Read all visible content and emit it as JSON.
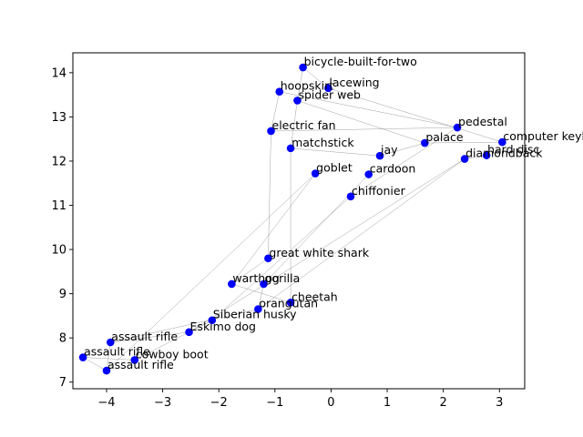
{
  "chart_data": {
    "type": "scatter",
    "title": "",
    "xlabel": "",
    "ylabel": "",
    "xlim": [
      -4.6,
      3.45
    ],
    "ylim": [
      6.85,
      14.45
    ],
    "xticks": [
      -4,
      -3,
      -2,
      -1,
      0,
      1,
      2,
      3
    ],
    "yticks": [
      7,
      8,
      9,
      10,
      11,
      12,
      13,
      14
    ],
    "grid": false,
    "colors": {
      "point": "#0000ff",
      "edge": "#808080",
      "axes": "#000000"
    },
    "points": [
      {
        "label": "bicycle-built-for-two",
        "x": -0.5,
        "y": 14.12
      },
      {
        "label": "lacewing",
        "x": -0.05,
        "y": 13.65
      },
      {
        "label": "hoopskirt",
        "x": -0.92,
        "y": 13.57
      },
      {
        "label": "spider web",
        "x": -0.6,
        "y": 13.37
      },
      {
        "label": "pedestal",
        "x": 2.25,
        "y": 12.76
      },
      {
        "label": "electric fan",
        "x": -1.07,
        "y": 12.68
      },
      {
        "label": "computer keyboard",
        "x": 3.05,
        "y": 12.43
      },
      {
        "label": "palace",
        "x": 1.67,
        "y": 12.41
      },
      {
        "label": "matchstick",
        "x": -0.72,
        "y": 12.29
      },
      {
        "label": "hard disc",
        "x": 2.77,
        "y": 12.13
      },
      {
        "label": "jay",
        "x": 0.87,
        "y": 12.12
      },
      {
        "label": "diamondback",
        "x": 2.38,
        "y": 12.05
      },
      {
        "label": "goblet",
        "x": -0.28,
        "y": 11.72
      },
      {
        "label": "cardoon",
        "x": 0.67,
        "y": 11.7
      },
      {
        "label": "chiffonier",
        "x": 0.35,
        "y": 11.2
      },
      {
        "label": "great white shark",
        "x": -1.12,
        "y": 9.8
      },
      {
        "label": "warthog",
        "x": -1.77,
        "y": 9.22
      },
      {
        "label": "gorilla",
        "x": -1.2,
        "y": 9.22
      },
      {
        "label": "cheetah",
        "x": -0.72,
        "y": 8.8
      },
      {
        "label": "orangutan",
        "x": -1.3,
        "y": 8.65
      },
      {
        "label": "Siberian husky",
        "x": -2.12,
        "y": 8.4
      },
      {
        "label": "Eskimo dog",
        "x": -2.53,
        "y": 8.13
      },
      {
        "label": "assault rifle",
        "x": -3.93,
        "y": 7.9
      },
      {
        "label": "assault rifle",
        "x": -4.42,
        "y": 7.56
      },
      {
        "label": "cowboy boot",
        "x": -3.5,
        "y": 7.5
      },
      {
        "label": "assault rifle",
        "x": -4.0,
        "y": 7.26
      }
    ],
    "edges": [
      [
        0,
        3
      ],
      [
        0,
        1
      ],
      [
        1,
        6
      ],
      [
        2,
        4
      ],
      [
        2,
        5
      ],
      [
        3,
        8
      ],
      [
        3,
        7
      ],
      [
        4,
        14
      ],
      [
        4,
        5
      ],
      [
        5,
        15
      ],
      [
        6,
        7
      ],
      [
        8,
        10
      ],
      [
        9,
        11
      ],
      [
        10,
        7
      ],
      [
        11,
        19
      ],
      [
        11,
        21
      ],
      [
        12,
        16
      ],
      [
        13,
        17
      ],
      [
        14,
        20
      ],
      [
        15,
        16
      ],
      [
        16,
        18
      ],
      [
        17,
        19
      ],
      [
        18,
        8
      ],
      [
        19,
        22
      ],
      [
        20,
        21
      ],
      [
        21,
        22
      ],
      [
        22,
        25
      ],
      [
        23,
        24
      ],
      [
        23,
        25
      ],
      [
        24,
        20
      ],
      [
        25,
        12
      ]
    ]
  }
}
